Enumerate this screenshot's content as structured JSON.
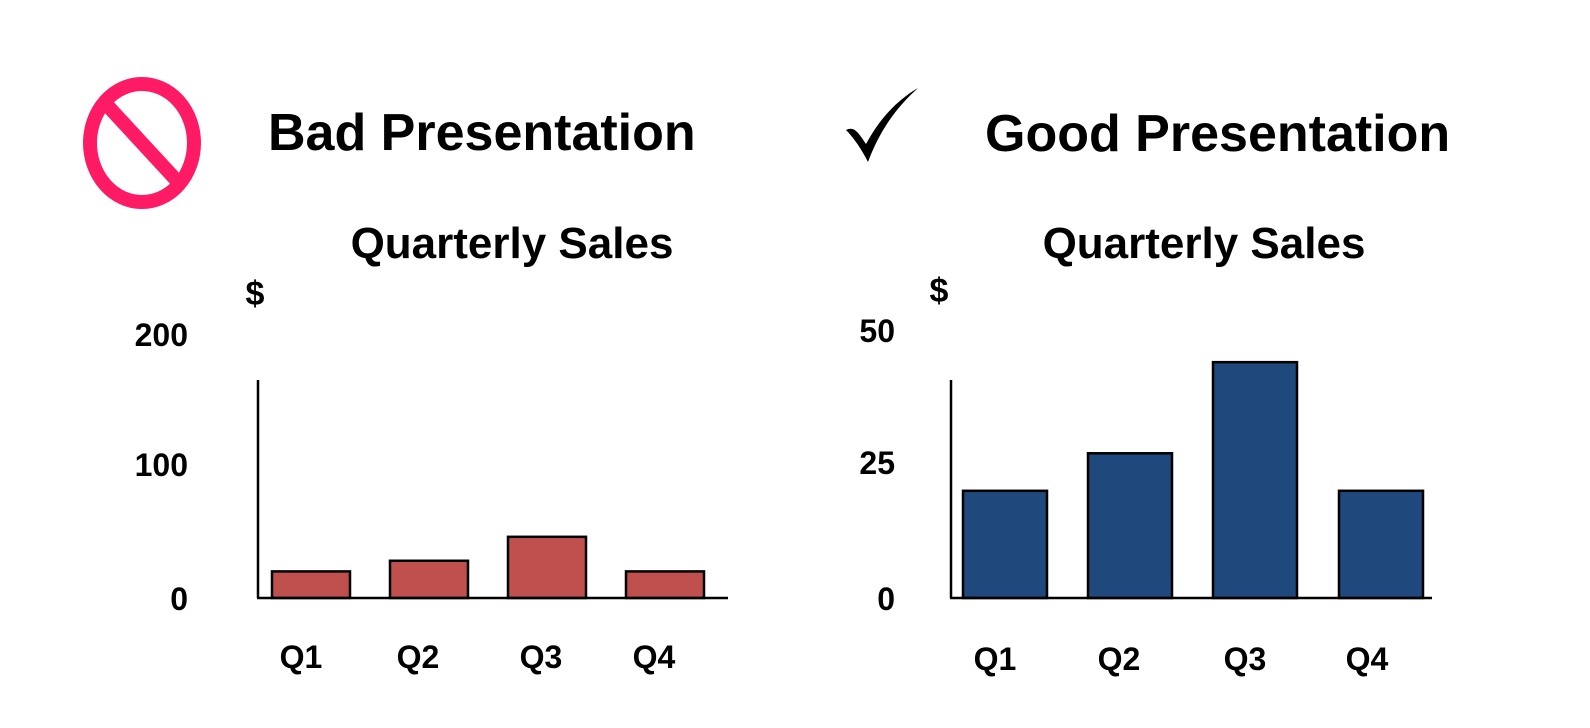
{
  "headings": {
    "bad": "Bad Presentation",
    "good": "Good Presentation"
  },
  "icons": {
    "bad": "prohibition-icon",
    "good": "checkmark-icon"
  },
  "colors": {
    "bad_bar": "#c0504d",
    "good_bar": "#1f497d",
    "prohibition": "#ff1a66"
  },
  "chart_data": [
    {
      "type": "bar",
      "title": "Quarterly Sales",
      "ylabel": "$",
      "xlabel": "",
      "categories": [
        "Q1",
        "Q2",
        "Q3",
        "Q4"
      ],
      "values": [
        20,
        28,
        46,
        20
      ],
      "ylim": [
        0,
        200
      ],
      "yticks": [
        0,
        100,
        200
      ],
      "grid": false,
      "legend": "none"
    },
    {
      "type": "bar",
      "title": "Quarterly Sales",
      "ylabel": "$",
      "xlabel": "",
      "categories": [
        "Q1",
        "Q2",
        "Q3",
        "Q4"
      ],
      "values": [
        20,
        27,
        44,
        20
      ],
      "ylim": [
        0,
        50
      ],
      "yticks": [
        0,
        25,
        50
      ],
      "grid": false,
      "legend": "none"
    }
  ]
}
